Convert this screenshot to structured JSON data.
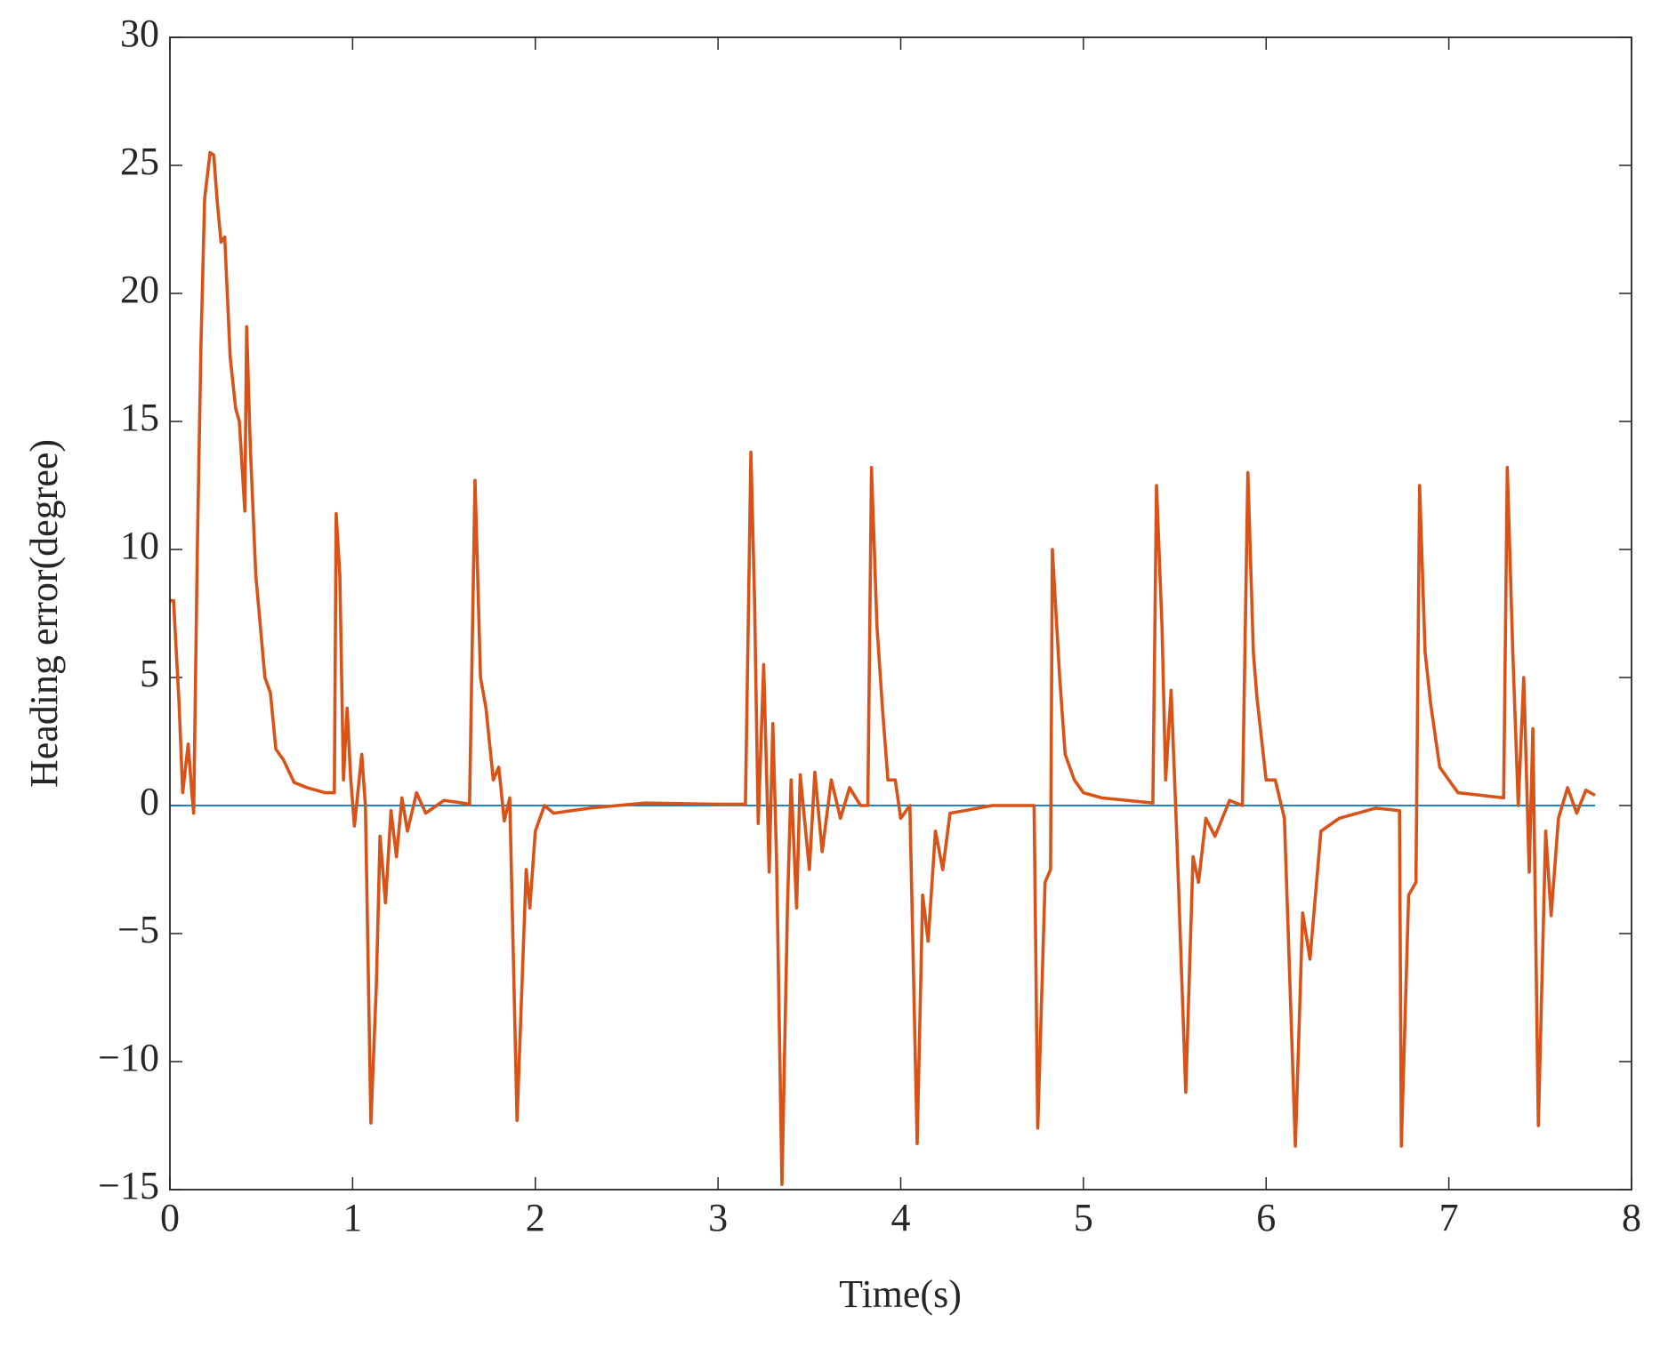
{
  "chart_data": {
    "type": "line",
    "xlabel": "Time(s)",
    "ylabel": "Heading error(degree)",
    "xlim": [
      0,
      8
    ],
    "ylim": [
      -15,
      30
    ],
    "xticks": [
      0,
      1,
      2,
      3,
      4,
      5,
      6,
      7,
      8
    ],
    "yticks": [
      {
        "value": -15,
        "label": "−15"
      },
      {
        "value": -10,
        "label": "−10"
      },
      {
        "value": -5,
        "label": "−5"
      },
      0,
      5,
      10,
      15,
      20,
      25,
      30
    ],
    "series": [
      {
        "color": "#0072BD",
        "x": [
          0,
          7.8
        ],
        "values": [
          0,
          0
        ]
      },
      {
        "color": "#D95319",
        "x": [
          0,
          0.02,
          0.05,
          0.07,
          0.1,
          0.12,
          0.13,
          0.15,
          0.17,
          0.19,
          0.22,
          0.24,
          0.26,
          0.28,
          0.3,
          0.33,
          0.36,
          0.38,
          0.41,
          0.42,
          0.44,
          0.47,
          0.52,
          0.55,
          0.58,
          0.62,
          0.68,
          0.75,
          0.85,
          0.9,
          0.91,
          0.93,
          0.95,
          0.97,
          0.99,
          1.01,
          1.05,
          1.07,
          1.1,
          1.13,
          1.15,
          1.18,
          1.21,
          1.24,
          1.27,
          1.3,
          1.35,
          1.4,
          1.5,
          1.6,
          1.64,
          1.67,
          1.7,
          1.73,
          1.77,
          1.8,
          1.83,
          1.86,
          1.9,
          1.95,
          1.97,
          2.0,
          2.05,
          2.1,
          2.3,
          2.6,
          3.0,
          3.15,
          3.18,
          3.2,
          3.22,
          3.25,
          3.28,
          3.3,
          3.32,
          3.35,
          3.38,
          3.4,
          3.43,
          3.45,
          3.5,
          3.53,
          3.57,
          3.62,
          3.67,
          3.72,
          3.78,
          3.82,
          3.84,
          3.87,
          3.9,
          3.93,
          3.97,
          4.0,
          4.05,
          4.09,
          4.12,
          4.15,
          4.19,
          4.23,
          4.27,
          4.35,
          4.5,
          4.73,
          4.75,
          4.79,
          4.82,
          4.83,
          4.87,
          4.9,
          4.95,
          5.0,
          5.1,
          5.38,
          5.4,
          5.43,
          5.45,
          5.48,
          5.51,
          5.56,
          5.6,
          5.63,
          5.67,
          5.72,
          5.8,
          5.87,
          5.9,
          5.93,
          5.95,
          6.0,
          6.05,
          6.1,
          6.16,
          6.2,
          6.24,
          6.3,
          6.4,
          6.6,
          6.73,
          6.74,
          6.78,
          6.82,
          6.84,
          6.87,
          6.9,
          6.95,
          7.05,
          7.3,
          7.32,
          7.35,
          7.38,
          7.41,
          7.44,
          7.46,
          7.49,
          7.53,
          7.56,
          7.6,
          7.65,
          7.7,
          7.75,
          7.8
        ],
        "values": [
          8,
          8,
          4,
          0.5,
          2.4,
          0.5,
          -0.3,
          10,
          18,
          23.7,
          25.5,
          25.4,
          23.5,
          22,
          22.2,
          17.5,
          15.5,
          15,
          11.5,
          18.7,
          14,
          9,
          5,
          4.4,
          2.2,
          1.8,
          0.9,
          0.7,
          0.5,
          0.5,
          11.4,
          9,
          1,
          3.8,
          1,
          -0.8,
          2,
          0,
          -12.4,
          -7,
          -1.2,
          -3.8,
          -0.2,
          -2,
          0.3,
          -1,
          0.5,
          -0.3,
          0.2,
          0.1,
          0.05,
          12.7,
          5,
          3.8,
          1,
          1.5,
          -0.6,
          0.3,
          -12.3,
          -2.5,
          -4,
          -1,
          0,
          -0.3,
          -0.1,
          0.1,
          0.05,
          0.05,
          13.8,
          8,
          -0.7,
          5.5,
          -2.6,
          3.2,
          -2,
          -14.8,
          -4,
          1,
          -4,
          1.2,
          -2.5,
          1.3,
          -1.8,
          1,
          -0.5,
          0.7,
          0,
          0,
          13.2,
          7,
          3.8,
          1,
          1,
          -0.5,
          0,
          -13.2,
          -3.5,
          -5.3,
          -1,
          -2.5,
          -0.3,
          -0.2,
          0,
          0,
          -12.6,
          -3,
          -2.5,
          10,
          5,
          2,
          1,
          0.5,
          0.3,
          0.1,
          12.5,
          7,
          1,
          4.5,
          -1,
          -11.2,
          -2,
          -3,
          -0.5,
          -1.2,
          0.2,
          0,
          13,
          6,
          4.2,
          1,
          1,
          -0.5,
          -13.3,
          -4.2,
          -6,
          -1,
          -0.5,
          -0.1,
          -0.2,
          -13.3,
          -3.5,
          -3,
          12.5,
          6,
          4,
          1.5,
          0.5,
          0.3,
          13.2,
          6,
          0,
          5,
          -2.6,
          3,
          -12.5,
          -1,
          -4.3,
          -0.5,
          0.7,
          -0.3,
          0.6,
          0.4
        ]
      }
    ]
  }
}
